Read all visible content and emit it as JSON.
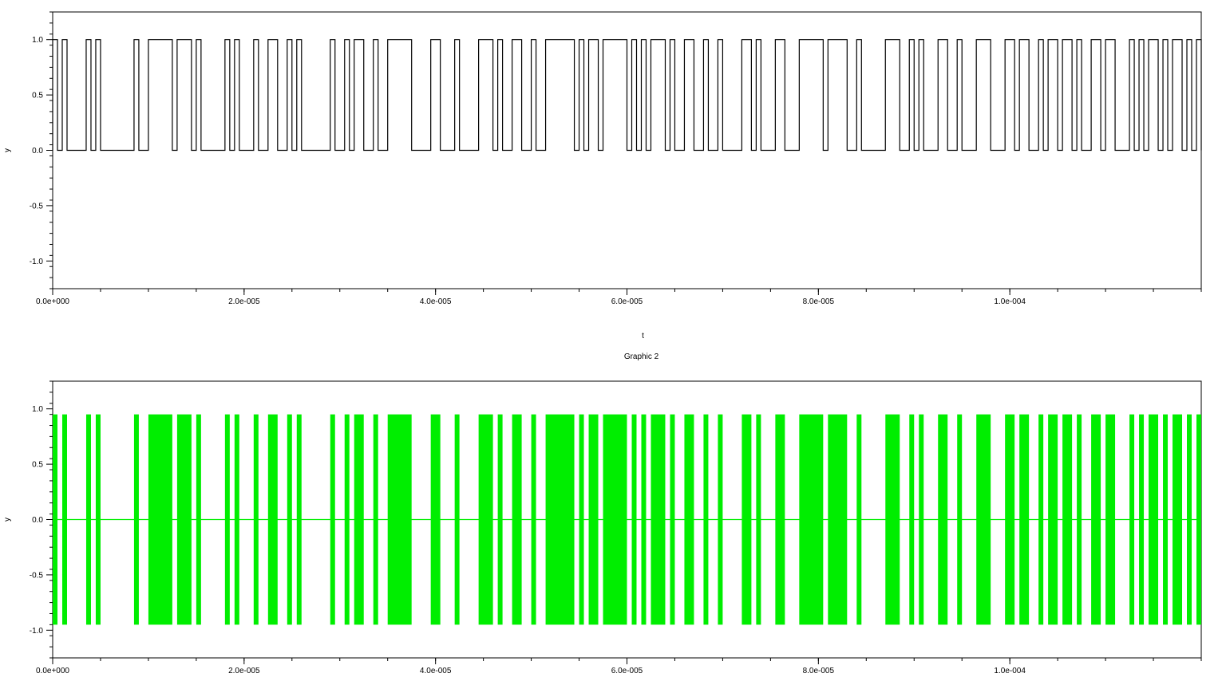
{
  "chart_data": [
    {
      "type": "line",
      "step": true,
      "title": "",
      "xlabel": "t",
      "ylabel": "y",
      "xlim": [
        0,
        0.00012
      ],
      "ylim": [
        -1.25,
        1.25
      ],
      "x_ticks": [
        0,
        2e-05,
        4e-05,
        6e-05,
        8e-05,
        0.0001
      ],
      "x_tick_labels": [
        "0.0e+000",
        "2.0e-005",
        "4.0e-005",
        "6.0e-005",
        "8.0e-005",
        "1.0e-004"
      ],
      "y_ticks": [
        -1.0,
        -0.5,
        0.0,
        0.5,
        1.0
      ],
      "y_tick_labels": [
        "-1.0",
        "-0.5",
        "0.0",
        "0.5",
        "1.0"
      ],
      "grid": false,
      "series": [
        {
          "color": "#000000",
          "description": "binary bit stream, intervals where y = 1 (otherwise y = 0)",
          "high_intervals": [
            [
              0.0,
              5e-07
            ],
            [
              1e-06,
              1.5e-06
            ],
            [
              3.5e-06,
              4e-06
            ],
            [
              4.5e-06,
              5e-06
            ],
            [
              8.5e-06,
              9e-06
            ],
            [
              1e-05,
              1.25e-05
            ],
            [
              1.3e-05,
              1.45e-05
            ],
            [
              1.5e-05,
              1.55e-05
            ],
            [
              1.8e-05,
              1.85e-05
            ],
            [
              1.9e-05,
              1.95e-05
            ],
            [
              2.1e-05,
              2.15e-05
            ],
            [
              2.25e-05,
              2.35e-05
            ],
            [
              2.45e-05,
              2.5e-05
            ],
            [
              2.55e-05,
              2.6e-05
            ],
            [
              2.9e-05,
              2.95e-05
            ],
            [
              3.05e-05,
              3.1e-05
            ],
            [
              3.15e-05,
              3.25e-05
            ],
            [
              3.35e-05,
              3.4e-05
            ],
            [
              3.5e-05,
              3.75e-05
            ],
            [
              3.95e-05,
              4.05e-05
            ],
            [
              4.2e-05,
              4.25e-05
            ],
            [
              4.45e-05,
              4.6e-05
            ],
            [
              4.65e-05,
              4.7e-05
            ],
            [
              4.8e-05,
              4.9e-05
            ],
            [
              5e-05,
              5.05e-05
            ],
            [
              5.15e-05,
              5.45e-05
            ],
            [
              5.5e-05,
              5.55e-05
            ],
            [
              5.6e-05,
              5.7e-05
            ],
            [
              5.75e-05,
              6e-05
            ],
            [
              6.05e-05,
              6.1e-05
            ],
            [
              6.15e-05,
              6.2e-05
            ],
            [
              6.25e-05,
              6.4e-05
            ],
            [
              6.45e-05,
              6.5e-05
            ],
            [
              6.6e-05,
              6.7e-05
            ],
            [
              6.8e-05,
              6.85e-05
            ],
            [
              6.95e-05,
              7e-05
            ],
            [
              7.2e-05,
              7.3e-05
            ],
            [
              7.35e-05,
              7.4e-05
            ],
            [
              7.55e-05,
              7.65e-05
            ],
            [
              7.8e-05,
              8.05e-05
            ],
            [
              8.1e-05,
              8.3e-05
            ],
            [
              8.4e-05,
              8.45e-05
            ],
            [
              8.7e-05,
              8.85e-05
            ],
            [
              8.95e-05,
              9e-05
            ],
            [
              9.05e-05,
              9.1e-05
            ],
            [
              9.25e-05,
              9.35e-05
            ],
            [
              9.45e-05,
              9.5e-05
            ],
            [
              9.65e-05,
              9.8e-05
            ],
            [
              9.95e-05,
              0.0001005
            ],
            [
              0.000101,
              0.000102
            ],
            [
              0.000103,
              0.0001035
            ],
            [
              0.000104,
              0.000105
            ],
            [
              0.0001055,
              0.0001065
            ],
            [
              0.000107,
              0.0001075
            ],
            [
              0.0001085,
              0.0001095
            ],
            [
              0.00011,
              0.000111
            ],
            [
              0.0001125,
              0.000113
            ],
            [
              0.0001135,
              0.000114
            ],
            [
              0.0001145,
              0.0001155
            ],
            [
              0.000116,
              0.0001165
            ],
            [
              0.000117,
              0.000118
            ],
            [
              0.0001185,
              0.000119
            ],
            [
              0.0001195,
              0.00012
            ]
          ]
        }
      ]
    },
    {
      "type": "line",
      "title": "Graphic 2",
      "xlabel": "",
      "ylabel": "y",
      "xlim": [
        0,
        0.00012
      ],
      "ylim": [
        -1.25,
        1.25
      ],
      "x_ticks": [
        0,
        2e-05,
        4e-05,
        6e-05,
        8e-05,
        0.0001
      ],
      "x_tick_labels": [
        "0.0e+000",
        "2.0e-005",
        "4.0e-005",
        "6.0e-005",
        "8.0e-005",
        "1.0e-004"
      ],
      "y_ticks": [
        -1.0,
        -0.5,
        0.0,
        0.5,
        1.0
      ],
      "y_tick_labels": [
        "-1.0",
        "-0.5",
        "0.0",
        "0.5",
        "1.0"
      ],
      "grid": false,
      "series": [
        {
          "color": "#00ee00",
          "description": "modulated carrier, envelope between y = -0.95 and y = 0.95 during the bit-1 intervals of the upper plot, y = 0 otherwise",
          "amplitude": 0.95,
          "baseline": 0.0
        }
      ]
    }
  ]
}
